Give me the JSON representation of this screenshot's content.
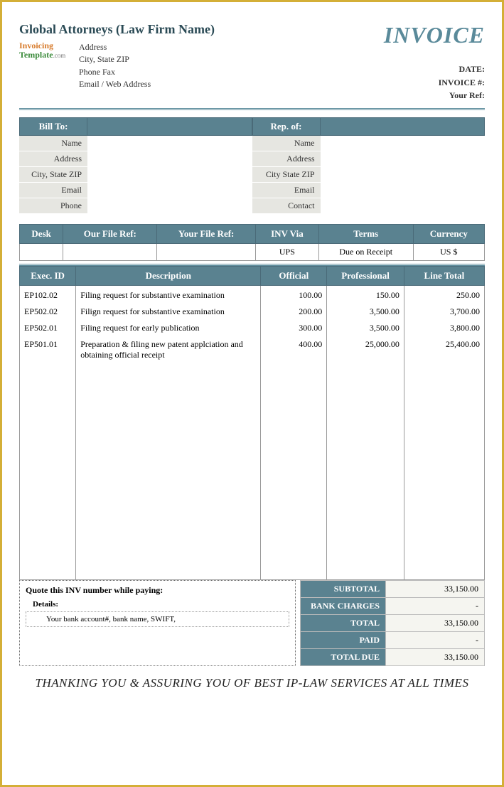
{
  "header": {
    "firm_name": "Global Attorneys (Law Firm Name)",
    "logo_line1": "Invoicing",
    "logo_line2": "Template",
    "logo_line3": ".com",
    "addr_lines": [
      "Address",
      "City, State ZIP",
      "Phone Fax",
      "Email / Web Address"
    ],
    "invoice_title": "INVOICE",
    "meta": {
      "date_lbl": "DATE:",
      "date_val": "",
      "invnum_lbl": "INVOICE #:",
      "invnum_val": "",
      "yourref_lbl": "Your Ref:",
      "yourref_val": ""
    }
  },
  "parties": {
    "billto_hdr": "Bill To:",
    "billto_fields": [
      "Name",
      "Address",
      "City, State ZIP",
      "Email",
      "Phone"
    ],
    "repof_hdr": "Rep. of:",
    "repof_fields": [
      "Name",
      "Address",
      "City State ZIP",
      "Email",
      "Contact"
    ]
  },
  "info_table": {
    "headers": [
      "Desk",
      "Our File Ref:",
      "Your File Ref:",
      "INV Via",
      "Terms",
      "Currency"
    ],
    "row": [
      "",
      "",
      "",
      "UPS",
      "Due on Receipt",
      "US $"
    ]
  },
  "items_table": {
    "headers": [
      "Exec. ID",
      "Description",
      "Official",
      "Professional",
      "Line Total"
    ],
    "rows": [
      {
        "exec": "EP102.02",
        "desc": "Filing request for substantive examination",
        "off": "100.00",
        "prof": "150.00",
        "tot": "250.00"
      },
      {
        "exec": "EP502.02",
        "desc": "Filign request for substantive examination",
        "off": "200.00",
        "prof": "3,500.00",
        "tot": "3,700.00"
      },
      {
        "exec": "EP502.01",
        "desc": "Filing request for early publication",
        "off": "300.00",
        "prof": "3,500.00",
        "tot": "3,800.00"
      },
      {
        "exec": "EP501.01",
        "desc": "Preparation & filing new patent applciation and obtaining official receipt",
        "off": "400.00",
        "prof": "25,000.00",
        "tot": "25,400.00"
      }
    ]
  },
  "quote": {
    "line1": "Quote this INV number while paying:",
    "line2": "Details:",
    "line3": "Your bank account#, bank name, SWIFT,"
  },
  "totals": {
    "rows": [
      {
        "lbl": "SUBTOTAL",
        "val": "33,150.00"
      },
      {
        "lbl": "BANK CHARGES",
        "val": "-"
      },
      {
        "lbl": "TOTAL",
        "val": "33,150.00"
      },
      {
        "lbl": "PAID",
        "val": "-"
      },
      {
        "lbl": "TOTAL DUE",
        "val": "33,150.00"
      }
    ]
  },
  "footer_note": "THANKING YOU & ASSURING YOU OF BEST IP-LAW SERVICES AT ALL TIMES",
  "colors": {
    "accent": "#5a8290",
    "accent_border": "#4a6a78",
    "page_border": "#d4af37",
    "field_bg": "#e6e6e1"
  }
}
